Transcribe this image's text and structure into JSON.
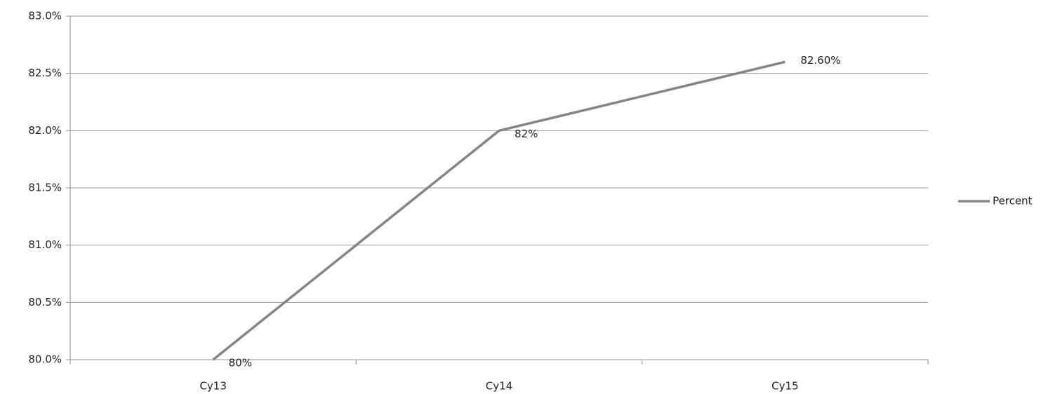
{
  "chart_data": {
    "type": "line",
    "categories": [
      "Cy13",
      "Cy14",
      "Cy15"
    ],
    "series": [
      {
        "name": "Percent",
        "color": "#858585",
        "values": [
          80,
          82,
          82.6
        ],
        "value_labels": [
          "80%",
          "82%",
          "82.60%"
        ]
      }
    ],
    "ylim": [
      80,
      83
    ],
    "yticks": [
      {
        "value": 80,
        "label": "80.0%"
      },
      {
        "value": 80.5,
        "label": "80.5%"
      },
      {
        "value": 81,
        "label": "81.0%"
      },
      {
        "value": 81.5,
        "label": "81.5%"
      },
      {
        "value": 82,
        "label": "82.0%"
      },
      {
        "value": 82.5,
        "label": "82.5%"
      },
      {
        "value": 83,
        "label": "83.0%"
      }
    ],
    "grid": true,
    "legend": "right"
  }
}
